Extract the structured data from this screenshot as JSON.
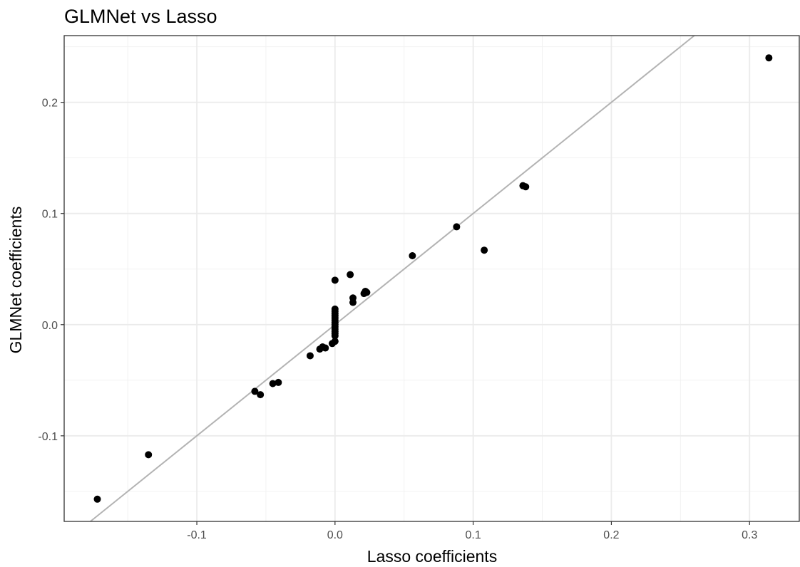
{
  "chart_data": {
    "type": "scatter",
    "title": "GLMNet vs Lasso",
    "xlabel": "Lasso coefficients",
    "ylabel": "GLMNet coefficients",
    "xlim": [
      -0.196,
      0.336
    ],
    "ylim": [
      -0.177,
      0.26
    ],
    "xticks": [
      -0.1,
      0.0,
      0.1,
      0.2,
      0.3
    ],
    "xtick_labels": [
      "-0.1",
      "0.0",
      "0.1",
      "0.2",
      "0.3"
    ],
    "yticks": [
      -0.1,
      0.0,
      0.1,
      0.2
    ],
    "ytick_labels": [
      "-0.1",
      "0.0",
      "0.1",
      "0.2"
    ],
    "grid": true,
    "reference_line": {
      "slope": 1,
      "intercept": 0,
      "color": "#b3b3b3"
    },
    "point_color": "#000000",
    "points": [
      {
        "x": -0.172,
        "y": -0.157
      },
      {
        "x": -0.135,
        "y": -0.117
      },
      {
        "x": -0.058,
        "y": -0.06
      },
      {
        "x": -0.054,
        "y": -0.063
      },
      {
        "x": -0.045,
        "y": -0.053
      },
      {
        "x": -0.041,
        "y": -0.052
      },
      {
        "x": -0.018,
        "y": -0.028
      },
      {
        "x": -0.011,
        "y": -0.022
      },
      {
        "x": -0.009,
        "y": -0.02
      },
      {
        "x": -0.007,
        "y": -0.021
      },
      {
        "x": -0.002,
        "y": -0.017
      },
      {
        "x": 0.0,
        "y": -0.015
      },
      {
        "x": 0.0,
        "y": -0.01
      },
      {
        "x": 0.0,
        "y": -0.008
      },
      {
        "x": 0.0,
        "y": -0.006
      },
      {
        "x": 0.0,
        "y": -0.004
      },
      {
        "x": 0.0,
        "y": -0.002
      },
      {
        "x": 0.0,
        "y": 0.0
      },
      {
        "x": 0.0,
        "y": 0.002
      },
      {
        "x": 0.0,
        "y": 0.004
      },
      {
        "x": 0.0,
        "y": 0.006
      },
      {
        "x": 0.0,
        "y": 0.008
      },
      {
        "x": 0.0,
        "y": 0.01
      },
      {
        "x": 0.0,
        "y": 0.012
      },
      {
        "x": 0.0,
        "y": 0.014
      },
      {
        "x": 0.0,
        "y": 0.04
      },
      {
        "x": 0.011,
        "y": 0.045
      },
      {
        "x": 0.013,
        "y": 0.02
      },
      {
        "x": 0.013,
        "y": 0.024
      },
      {
        "x": 0.021,
        "y": 0.028
      },
      {
        "x": 0.022,
        "y": 0.03
      },
      {
        "x": 0.023,
        "y": 0.029
      },
      {
        "x": 0.056,
        "y": 0.062
      },
      {
        "x": 0.088,
        "y": 0.088
      },
      {
        "x": 0.108,
        "y": 0.067
      },
      {
        "x": 0.136,
        "y": 0.125
      },
      {
        "x": 0.138,
        "y": 0.124
      },
      {
        "x": 0.314,
        "y": 0.24
      }
    ]
  }
}
